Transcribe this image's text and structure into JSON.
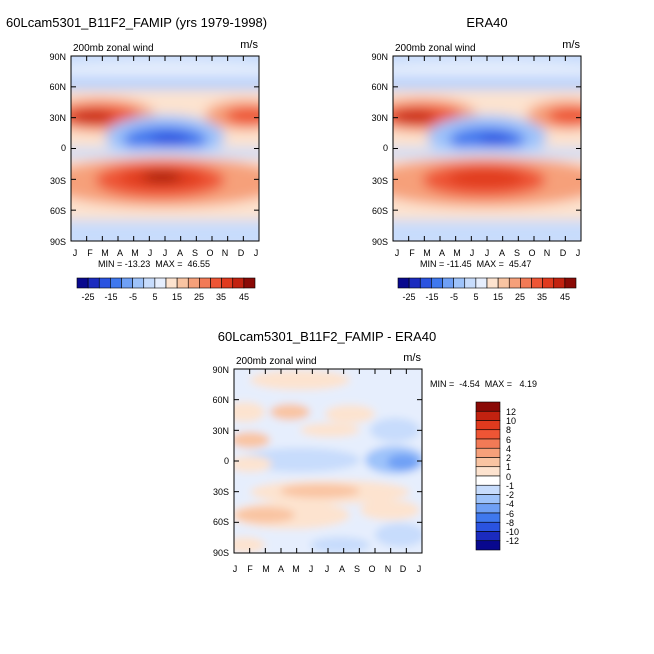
{
  "chart_data": [
    {
      "type": "heatmap",
      "title": "60Lcam5301_B11F2_FAMIP (yrs 1979-1998)",
      "subtitle": "200mb zonal wind",
      "units": "m/s",
      "x_ticks": [
        "J",
        "F",
        "M",
        "A",
        "M",
        "J",
        "J",
        "A",
        "S",
        "O",
        "N",
        "D",
        "J"
      ],
      "y_ticks": [
        "90N",
        "60N",
        "30N",
        "0",
        "30S",
        "60S",
        "90S"
      ],
      "ylim": [
        -90,
        90
      ],
      "stats": "MIN = -13.23  MAX =  46.55",
      "colorbar": {
        "labels": [
          "-25",
          "-15",
          "-5",
          "5",
          "15",
          "25",
          "35",
          "45"
        ],
        "colors": [
          "#08088e",
          "#1b2bbf",
          "#2a53e0",
          "#3f78ee",
          "#6fa0f5",
          "#9ec3fa",
          "#c7dcfc",
          "#e6eefd",
          "#fde3cf",
          "#f9c4a2",
          "#f6a07a",
          "#f27a56",
          "#ee5535",
          "#e03a1e",
          "#c22210",
          "#8a0a06"
        ]
      }
    },
    {
      "type": "heatmap",
      "title": "ERA40",
      "subtitle": "200mb zonal wind",
      "units": "m/s",
      "x_ticks": [
        "J",
        "F",
        "M",
        "A",
        "M",
        "J",
        "J",
        "A",
        "S",
        "O",
        "N",
        "D",
        "J"
      ],
      "y_ticks": [
        "90N",
        "60N",
        "30N",
        "0",
        "30S",
        "60S",
        "90S"
      ],
      "ylim": [
        -90,
        90
      ],
      "stats": "MIN = -11.45  MAX =  45.47",
      "colorbar": {
        "labels": [
          "-25",
          "-15",
          "-5",
          "5",
          "15",
          "25",
          "35",
          "45"
        ],
        "colors": [
          "#08088e",
          "#1b2bbf",
          "#2a53e0",
          "#3f78ee",
          "#6fa0f5",
          "#9ec3fa",
          "#c7dcfc",
          "#e6eefd",
          "#fde3cf",
          "#f9c4a2",
          "#f6a07a",
          "#f27a56",
          "#ee5535",
          "#e03a1e",
          "#c22210",
          "#8a0a06"
        ]
      }
    },
    {
      "type": "heatmap",
      "title": "60Lcam5301_B11F2_FAMIP - ERA40",
      "subtitle": "200mb zonal wind",
      "units": "m/s",
      "x_ticks": [
        "J",
        "F",
        "M",
        "A",
        "M",
        "J",
        "J",
        "A",
        "S",
        "O",
        "N",
        "D",
        "J"
      ],
      "y_ticks": [
        "90N",
        "60N",
        "30N",
        "0",
        "30S",
        "60S",
        "90S"
      ],
      "ylim": [
        -90,
        90
      ],
      "stats": "MIN =  -4.54  MAX =   4.19",
      "colorbar": {
        "labels": [
          "12",
          "10",
          "8",
          "6",
          "4",
          "2",
          "1",
          "0",
          "-1",
          "-2",
          "-4",
          "-6",
          "-8",
          "-10",
          "-12"
        ],
        "colors": [
          "#8a0a06",
          "#c22210",
          "#e03a1e",
          "#ee5535",
          "#f27a56",
          "#f6a07a",
          "#f9c4a2",
          "#fde3cf",
          "#ffffff",
          "#c7dcfc",
          "#9ec3fa",
          "#6fa0f5",
          "#3f78ee",
          "#2a53e0",
          "#1b2bbf",
          "#08088e"
        ]
      }
    }
  ]
}
